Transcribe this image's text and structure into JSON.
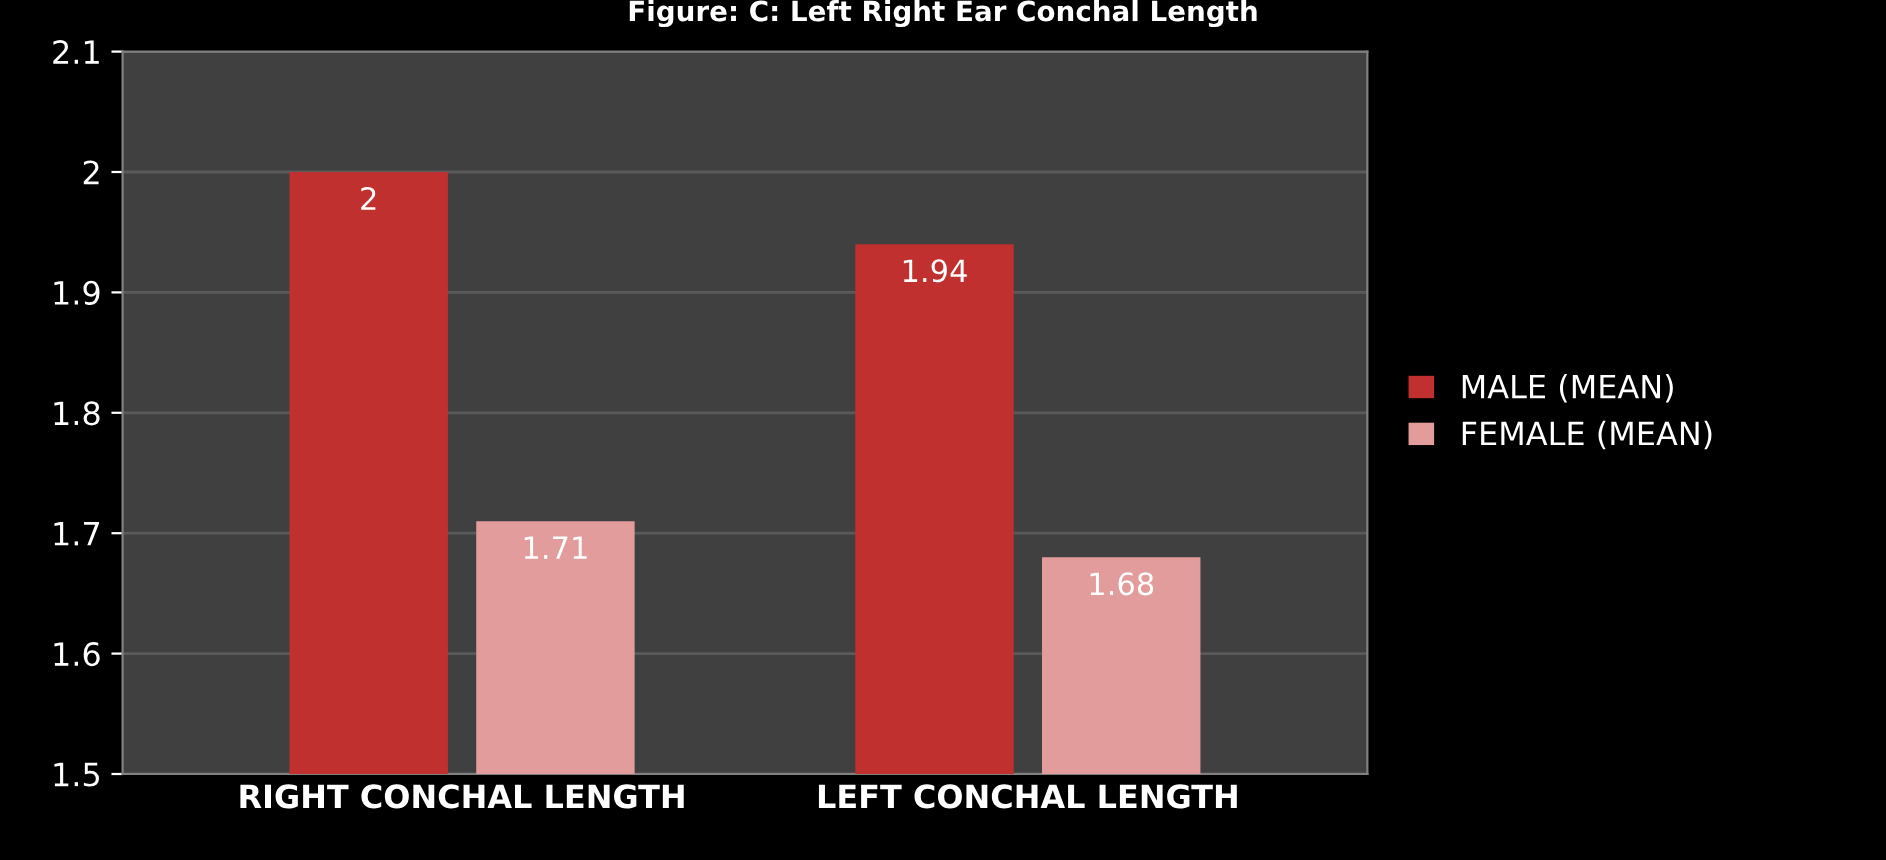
{
  "chart_data": {
    "type": "bar",
    "title": "Figure: C: Left Right Ear Conchal Length",
    "categories": [
      "RIGHT CONCHAL LENGTH",
      "LEFT CONCHAL LENGTH"
    ],
    "series": [
      {
        "name": "MALE (MEAN)",
        "color": "#c0302e",
        "values": [
          2,
          1.94
        ]
      },
      {
        "name": "FEMALE (MEAN)",
        "color": "#e29c9c",
        "values": [
          1.71,
          1.68
        ]
      }
    ],
    "ylim": [
      1.5,
      2.1
    ],
    "yticks": [
      1.5,
      1.6,
      1.7,
      1.8,
      1.9,
      2,
      2.1
    ],
    "grid": "y",
    "legend": "right",
    "data_labels": true
  }
}
